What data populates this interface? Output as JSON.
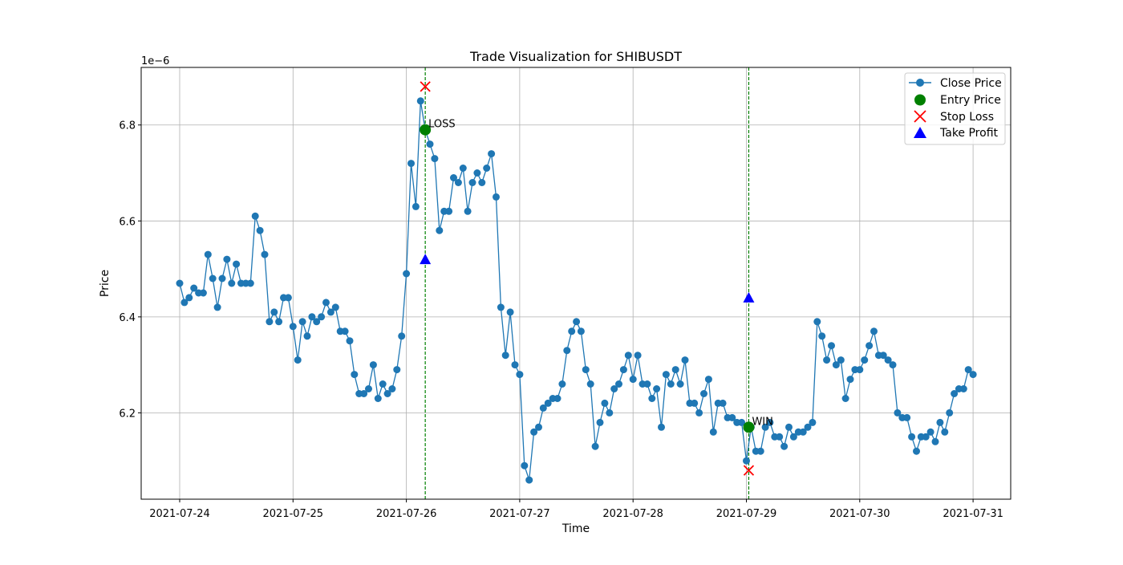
{
  "chart_data": {
    "type": "line",
    "title": "Trade Visualization for SHIBUSDT",
    "xlabel": "Time",
    "ylabel": "Price",
    "y_offset_text": "1e−6",
    "x_tick_labels": [
      "2021-07-24",
      "2021-07-25",
      "2021-07-26",
      "2021-07-27",
      "2021-07-28",
      "2021-07-29",
      "2021-07-30",
      "2021-07-31"
    ],
    "y_ticks": [
      6.2,
      6.4,
      6.6,
      6.8
    ],
    "y_tick_labels": [
      "6.2",
      "6.4",
      "6.6",
      "6.8"
    ],
    "ylim": [
      6.02,
      6.92
    ],
    "x_start_date": "2021-07-24T00:00",
    "x_step_hours": 1,
    "grid": true,
    "legend_position": "top-right",
    "legend": [
      "Close Price",
      "Entry Price",
      "Stop Loss",
      "Take Profit"
    ],
    "series": [
      {
        "name": "Close Price",
        "x": [
          "2021-07-24T00:00",
          "2021-07-24T01:00",
          "2021-07-24T02:00",
          "2021-07-24T03:00",
          "2021-07-24T04:00",
          "2021-07-24T05:00",
          "2021-07-24T06:00",
          "2021-07-24T07:00",
          "2021-07-24T08:00",
          "2021-07-24T09:00",
          "2021-07-24T10:00",
          "2021-07-24T11:00",
          "2021-07-24T12:00",
          "2021-07-24T13:00",
          "2021-07-24T14:00",
          "2021-07-24T15:00",
          "2021-07-24T16:00",
          "2021-07-24T17:00",
          "2021-07-24T18:00",
          "2021-07-24T19:00",
          "2021-07-24T20:00",
          "2021-07-24T21:00",
          "2021-07-24T22:00",
          "2021-07-24T23:00",
          "2021-07-25T00:00",
          "2021-07-25T01:00",
          "2021-07-25T02:00",
          "2021-07-25T03:00",
          "2021-07-25T04:00",
          "2021-07-25T05:00",
          "2021-07-25T06:00",
          "2021-07-25T07:00",
          "2021-07-25T08:00",
          "2021-07-25T09:00",
          "2021-07-25T10:00",
          "2021-07-25T11:00",
          "2021-07-25T12:00",
          "2021-07-25T13:00",
          "2021-07-25T14:00",
          "2021-07-25T15:00",
          "2021-07-25T16:00",
          "2021-07-25T17:00",
          "2021-07-25T18:00",
          "2021-07-25T19:00",
          "2021-07-25T20:00",
          "2021-07-25T21:00",
          "2021-07-25T22:00",
          "2021-07-25T23:00",
          "2021-07-26T00:00",
          "2021-07-26T01:00",
          "2021-07-26T02:00",
          "2021-07-26T03:00",
          "2021-07-26T04:00",
          "2021-07-26T05:00",
          "2021-07-26T06:00",
          "2021-07-26T07:00",
          "2021-07-26T08:00",
          "2021-07-26T09:00",
          "2021-07-26T10:00",
          "2021-07-26T11:00",
          "2021-07-26T12:00",
          "2021-07-26T13:00",
          "2021-07-26T14:00",
          "2021-07-26T15:00",
          "2021-07-26T16:00",
          "2021-07-26T17:00",
          "2021-07-26T18:00",
          "2021-07-26T19:00",
          "2021-07-26T20:00",
          "2021-07-26T21:00",
          "2021-07-26T22:00",
          "2021-07-26T23:00",
          "2021-07-27T00:00",
          "2021-07-27T01:00",
          "2021-07-27T02:00",
          "2021-07-27T03:00",
          "2021-07-27T04:00",
          "2021-07-27T05:00",
          "2021-07-27T06:00",
          "2021-07-27T07:00",
          "2021-07-27T08:00",
          "2021-07-27T09:00",
          "2021-07-27T10:00",
          "2021-07-27T11:00",
          "2021-07-27T12:00",
          "2021-07-27T13:00",
          "2021-07-27T14:00",
          "2021-07-27T15:00",
          "2021-07-27T16:00",
          "2021-07-27T17:00",
          "2021-07-27T18:00",
          "2021-07-27T19:00",
          "2021-07-27T20:00",
          "2021-07-27T21:00",
          "2021-07-27T22:00",
          "2021-07-27T23:00",
          "2021-07-28T00:00",
          "2021-07-28T01:00",
          "2021-07-28T02:00",
          "2021-07-28T03:00",
          "2021-07-28T04:00",
          "2021-07-28T05:00",
          "2021-07-28T06:00",
          "2021-07-28T07:00",
          "2021-07-28T08:00",
          "2021-07-28T09:00",
          "2021-07-28T10:00",
          "2021-07-28T11:00",
          "2021-07-28T12:00",
          "2021-07-28T13:00",
          "2021-07-28T14:00",
          "2021-07-28T15:00",
          "2021-07-28T16:00",
          "2021-07-28T17:00",
          "2021-07-28T18:00",
          "2021-07-28T19:00",
          "2021-07-28T20:00",
          "2021-07-28T21:00",
          "2021-07-28T22:00",
          "2021-07-28T23:00",
          "2021-07-29T00:00",
          "2021-07-29T01:00",
          "2021-07-29T02:00",
          "2021-07-29T03:00",
          "2021-07-29T04:00",
          "2021-07-29T05:00",
          "2021-07-29T06:00",
          "2021-07-29T07:00",
          "2021-07-29T08:00",
          "2021-07-29T09:00",
          "2021-07-29T10:00",
          "2021-07-29T11:00",
          "2021-07-29T12:00",
          "2021-07-29T13:00",
          "2021-07-29T14:00",
          "2021-07-29T15:00",
          "2021-07-29T16:00",
          "2021-07-29T17:00",
          "2021-07-29T18:00",
          "2021-07-29T19:00",
          "2021-07-29T20:00",
          "2021-07-29T21:00",
          "2021-07-29T22:00",
          "2021-07-29T23:00",
          "2021-07-30T00:00",
          "2021-07-30T01:00",
          "2021-07-30T02:00",
          "2021-07-30T03:00",
          "2021-07-30T04:00",
          "2021-07-30T05:00",
          "2021-07-30T06:00",
          "2021-07-30T07:00",
          "2021-07-30T08:00",
          "2021-07-30T09:00",
          "2021-07-30T10:00",
          "2021-07-30T11:00",
          "2021-07-30T12:00",
          "2021-07-30T13:00",
          "2021-07-30T14:00",
          "2021-07-30T15:00",
          "2021-07-30T16:00",
          "2021-07-30T17:00",
          "2021-07-30T18:00",
          "2021-07-30T19:00",
          "2021-07-30T20:00",
          "2021-07-30T21:00",
          "2021-07-30T22:00",
          "2021-07-30T23:00",
          "2021-07-31T00:00"
        ],
        "values": [
          6.47,
          6.43,
          6.44,
          6.46,
          6.45,
          6.45,
          6.53,
          6.48,
          6.42,
          6.48,
          6.52,
          6.47,
          6.51,
          6.47,
          6.47,
          6.47,
          6.61,
          6.58,
          6.53,
          6.39,
          6.41,
          6.39,
          6.44,
          6.44,
          6.38,
          6.31,
          6.39,
          6.36,
          6.4,
          6.39,
          6.4,
          6.43,
          6.41,
          6.42,
          6.37,
          6.37,
          6.35,
          6.28,
          6.24,
          6.24,
          6.25,
          6.3,
          6.23,
          6.26,
          6.24,
          6.25,
          6.29,
          6.36,
          6.49,
          6.72,
          6.63,
          6.85,
          6.79,
          6.76,
          6.73,
          6.58,
          6.62,
          6.62,
          6.69,
          6.68,
          6.71,
          6.62,
          6.68,
          6.7,
          6.68,
          6.71,
          6.74,
          6.65,
          6.42,
          6.32,
          6.41,
          6.3,
          6.28,
          6.09,
          6.06,
          6.16,
          6.17,
          6.21,
          6.22,
          6.23,
          6.23,
          6.26,
          6.33,
          6.37,
          6.39,
          6.37,
          6.29,
          6.26,
          6.13,
          6.18,
          6.22,
          6.2,
          6.25,
          6.26,
          6.29,
          6.32,
          6.27,
          6.32,
          6.26,
          6.26,
          6.23,
          6.25,
          6.17,
          6.28,
          6.26,
          6.29,
          6.26,
          6.31,
          6.22,
          6.22,
          6.2,
          6.24,
          6.27,
          6.16,
          6.22,
          6.22,
          6.19,
          6.19,
          6.18,
          6.18,
          6.1,
          6.17,
          6.12,
          6.12,
          6.17,
          6.18,
          6.15,
          6.15,
          6.13,
          6.17,
          6.15,
          6.16,
          6.16,
          6.17,
          6.18,
          6.39,
          6.36,
          6.31,
          6.34,
          6.3,
          6.31,
          6.23,
          6.27,
          6.29,
          6.29,
          6.31,
          6.34,
          6.37,
          6.32,
          6.32,
          6.31,
          6.3,
          6.2,
          6.19,
          6.19,
          6.15,
          6.12,
          6.15,
          6.15,
          6.16,
          6.14,
          6.18,
          6.16,
          6.2,
          6.24,
          6.25,
          6.25,
          6.29,
          6.28
        ],
        "color": "#1f77b4"
      }
    ],
    "trades": [
      {
        "time": "2021-07-26T04:00",
        "entry": 6.79,
        "stop_loss": 6.88,
        "take_profit": 6.52,
        "result": "LOSS"
      },
      {
        "time": "2021-07-29T00:30",
        "entry": 6.17,
        "stop_loss": 6.08,
        "take_profit": 6.44,
        "result": "WIN"
      }
    ],
    "colors": {
      "line": "#1f77b4",
      "entry": "#008000",
      "stop_loss": "#ff0000",
      "take_profit": "#0000ff",
      "trade_line": "#008000",
      "grid": "#b0b0b0"
    }
  }
}
